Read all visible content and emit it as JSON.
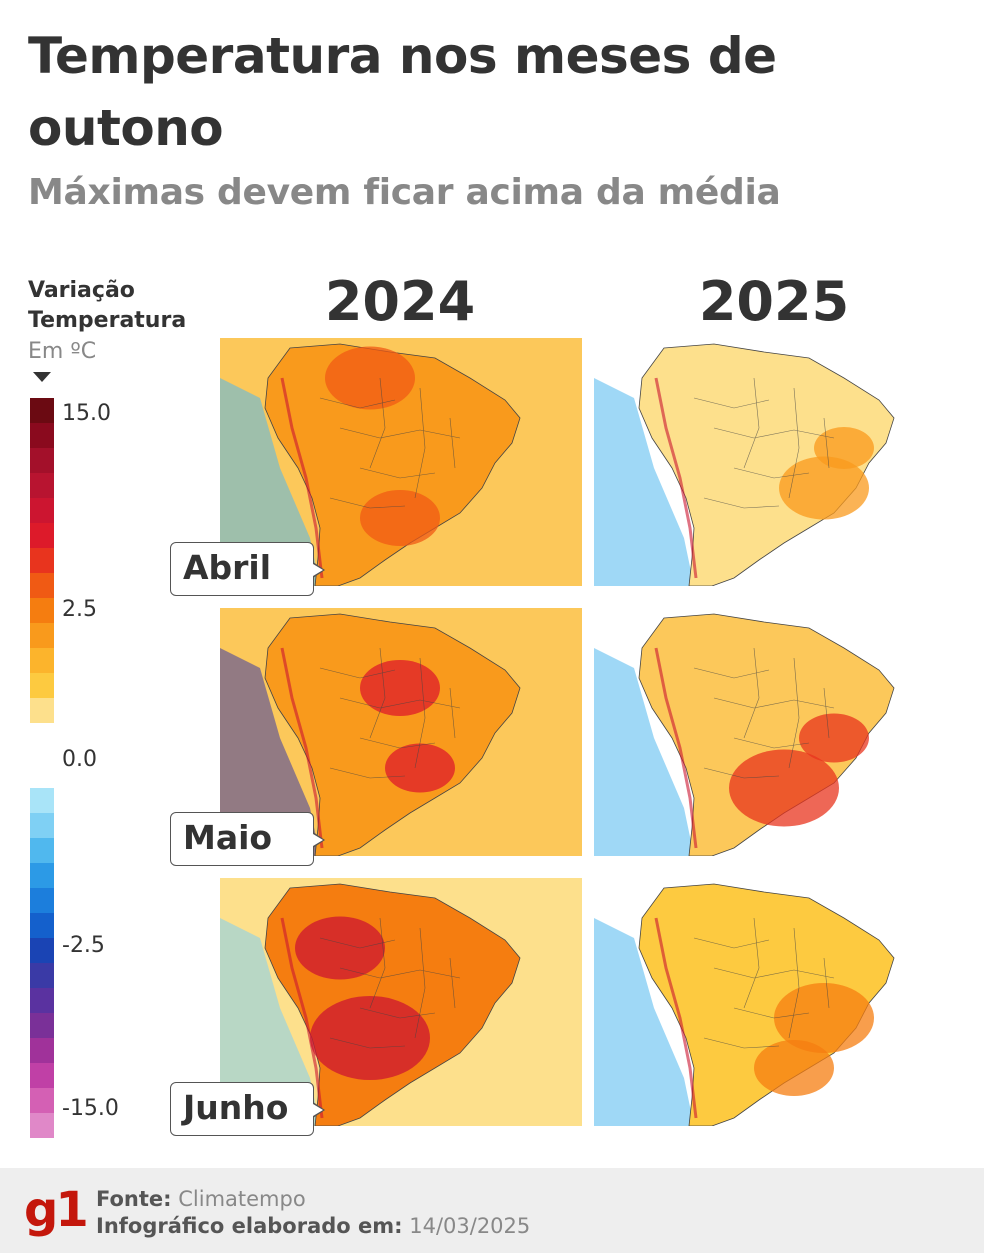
{
  "title": "Temperatura nos meses de outono",
  "subtitle": "Máximas devem ficar acima da média",
  "legend": {
    "title_line1": "Variação",
    "title_line2": "Temperatura",
    "unit": "Em ºC",
    "labels": [
      "15.0",
      "2.5",
      "0.0",
      "-2.5",
      "-15.0"
    ],
    "warm_colors": [
      "#6b0a12",
      "#8a0a1e",
      "#a3102a",
      "#b81430",
      "#cc1530",
      "#dd1a2a",
      "#e8341e",
      "#f05a14",
      "#f57d10",
      "#f99a1c",
      "#fcb42c",
      "#fdca40",
      "#fde08c"
    ],
    "cool_colors": [
      "#a9e4f8",
      "#7fd0f4",
      "#50b8ee",
      "#2c9ae6",
      "#1c7edc",
      "#1460cc",
      "#1a44b4",
      "#3a3aa6",
      "#5a32a0",
      "#7a3098",
      "#a0329a",
      "#c040a6",
      "#d460b4",
      "#e088c8"
    ]
  },
  "years": [
    "2024",
    "2025"
  ],
  "months": [
    "Abril",
    "Maio",
    "Junho"
  ],
  "maps": {
    "2024": {
      "Abril": "warm",
      "Maio": "warm-cold-south",
      "Junho": "hot"
    },
    "2025": {
      "Abril": "mild",
      "Maio": "warm-south",
      "Junho": "mild-warm"
    }
  },
  "footer": {
    "logo": "g1",
    "source_label": "Fonte:",
    "source_value": "Climatempo",
    "date_label": "Infográfico elaborado em:",
    "date_value": "14/03/2025"
  }
}
